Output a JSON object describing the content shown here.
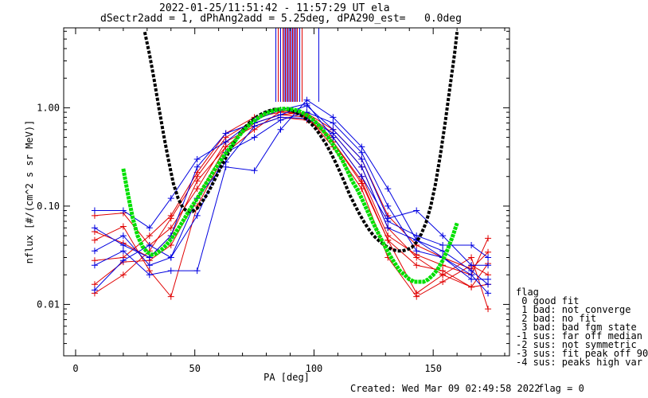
{
  "title_line1": "2022-01-25/11:51:42 - 11:57:29 UT ela",
  "title_line2": "dSectr2add = 1, dPhAng2add = 5.25deg, dPA290_est=   0.0deg",
  "footer": {
    "created": "Created: Wed Mar 09 02:49:58 2022",
    "flag": "flag = 0"
  },
  "legend": {
    "title": "flag",
    "items": [
      " 0 good fit",
      " 1 bad: not converge",
      " 2 bad: no fit",
      " 3 bad: bad fgm state",
      "-1 sus: far off median",
      "-2 sus: not symmetric",
      "-3 sus: fit peak off 90",
      "-4 sus: peaks high var"
    ]
  },
  "colors": {
    "red": "#e00000",
    "blue": "#0000e0",
    "black": "#000000",
    "green": "#00e000"
  },
  "chart_data": {
    "type": "line",
    "title": "2022-01-25/11:51:42 - 11:57:29 UT ela",
    "subtitle": "dSectr2add = 1, dPhAng2add = 5.25deg, dPA290_est=   0.0deg",
    "xlabel": "PA [deg]",
    "ylabel": "nflux [#/(cm^2 s sr MeV)]",
    "xlim": [
      -5,
      182
    ],
    "ylim": [
      0.003,
      6.5
    ],
    "ylog": true,
    "xticks": [
      0,
      50,
      100,
      150
    ],
    "xtick_labels": [
      "0",
      "50",
      "100",
      "150"
    ],
    "yticks": [
      0.01,
      0.1,
      1.0
    ],
    "ytick_labels": [
      "0.01",
      "0.10",
      "1.00"
    ],
    "grid": false,
    "series": [
      {
        "color": "red",
        "points": [
          [
            8,
            0.016
          ],
          [
            20,
            0.027
          ],
          [
            31,
            0.028
          ],
          [
            40,
            0.04
          ],
          [
            51,
            0.12
          ],
          [
            63,
            0.4
          ],
          [
            75,
            0.7
          ],
          [
            86,
            0.85
          ],
          [
            97,
            0.8
          ],
          [
            108,
            0.45
          ],
          [
            120,
            0.17
          ],
          [
            131,
            0.045
          ],
          [
            143,
            0.025
          ],
          [
            154,
            0.022
          ],
          [
            166,
            0.015
          ],
          [
            173,
            0.016
          ]
        ]
      },
      {
        "color": "red",
        "points": [
          [
            8,
            0.013
          ],
          [
            20,
            0.02
          ],
          [
            31,
            0.035
          ],
          [
            40,
            0.075
          ],
          [
            51,
            0.2
          ],
          [
            63,
            0.5
          ],
          [
            75,
            0.75
          ],
          [
            86,
            0.95
          ],
          [
            97,
            0.85
          ],
          [
            108,
            0.55
          ],
          [
            120,
            0.25
          ],
          [
            131,
            0.06
          ],
          [
            143,
            0.03
          ],
          [
            154,
            0.02
          ],
          [
            166,
            0.015
          ],
          [
            173,
            0.026
          ]
        ]
      },
      {
        "color": "red",
        "points": [
          [
            8,
            0.028
          ],
          [
            20,
            0.03
          ],
          [
            31,
            0.05
          ],
          [
            40,
            0.08
          ],
          [
            51,
            0.22
          ],
          [
            63,
            0.55
          ],
          [
            75,
            0.8
          ],
          [
            86,
            0.9
          ],
          [
            97,
            0.88
          ],
          [
            108,
            0.6
          ],
          [
            120,
            0.3
          ],
          [
            131,
            0.08
          ],
          [
            143,
            0.04
          ],
          [
            154,
            0.03
          ],
          [
            166,
            0.023
          ],
          [
            173,
            0.034
          ]
        ]
      },
      {
        "color": "red",
        "points": [
          [
            8,
            0.08
          ],
          [
            20,
            0.085
          ],
          [
            31,
            0.04
          ],
          [
            40,
            0.06
          ],
          [
            51,
            0.15
          ],
          [
            63,
            0.45
          ],
          [
            75,
            0.65
          ],
          [
            86,
            0.8
          ],
          [
            97,
            0.75
          ],
          [
            108,
            0.5
          ],
          [
            120,
            0.2
          ],
          [
            131,
            0.05
          ],
          [
            143,
            0.032
          ],
          [
            154,
            0.025
          ],
          [
            166,
            0.02
          ],
          [
            173,
            0.047
          ]
        ]
      },
      {
        "color": "red",
        "points": [
          [
            8,
            0.055
          ],
          [
            20,
            0.042
          ],
          [
            31,
            0.03
          ],
          [
            40,
            0.05
          ],
          [
            51,
            0.18
          ],
          [
            63,
            0.4
          ],
          [
            75,
            0.7
          ],
          [
            86,
            0.85
          ],
          [
            97,
            0.9
          ],
          [
            108,
            0.45
          ],
          [
            120,
            0.18
          ],
          [
            131,
            0.045
          ],
          [
            143,
            0.013
          ],
          [
            154,
            0.02
          ],
          [
            166,
            0.03
          ],
          [
            173,
            0.009
          ]
        ]
      },
      {
        "color": "red",
        "points": [
          [
            8,
            0.045
          ],
          [
            20,
            0.062
          ],
          [
            31,
            0.022
          ],
          [
            40,
            0.012
          ],
          [
            51,
            0.1
          ],
          [
            63,
            0.35
          ],
          [
            75,
            0.6
          ],
          [
            86,
            0.92
          ],
          [
            97,
            0.82
          ],
          [
            108,
            0.4
          ],
          [
            120,
            0.15
          ],
          [
            131,
            0.03
          ],
          [
            143,
            0.012
          ],
          [
            154,
            0.017
          ],
          [
            166,
            0.025
          ],
          [
            173,
            0.02
          ]
        ]
      },
      {
        "color": "blue",
        "points": [
          [
            8,
            0.09
          ],
          [
            20,
            0.09
          ],
          [
            31,
            0.06
          ],
          [
            40,
            0.12
          ],
          [
            51,
            0.3
          ],
          [
            63,
            0.45
          ],
          [
            75,
            0.75
          ],
          [
            86,
            0.95
          ],
          [
            97,
            1.1
          ],
          [
            108,
            0.5
          ],
          [
            120,
            0.2
          ],
          [
            131,
            0.07
          ],
          [
            143,
            0.05
          ],
          [
            154,
            0.04
          ],
          [
            166,
            0.04
          ],
          [
            173,
            0.03
          ]
        ]
      },
      {
        "color": "blue",
        "points": [
          [
            8,
            0.06
          ],
          [
            20,
            0.04
          ],
          [
            31,
            0.03
          ],
          [
            40,
            0.05
          ],
          [
            51,
            0.25
          ],
          [
            63,
            0.55
          ],
          [
            75,
            0.7
          ],
          [
            86,
            0.85
          ],
          [
            97,
            1.05
          ],
          [
            108,
            0.6
          ],
          [
            120,
            0.3
          ],
          [
            131,
            0.075
          ],
          [
            143,
            0.09
          ],
          [
            154,
            0.05
          ],
          [
            166,
            0.025
          ],
          [
            173,
            0.025
          ]
        ]
      },
      {
        "color": "blue",
        "points": [
          [
            8,
            0.035
          ],
          [
            20,
            0.05
          ],
          [
            31,
            0.025
          ],
          [
            40,
            0.03
          ],
          [
            51,
            0.08
          ],
          [
            63,
            0.35
          ],
          [
            75,
            0.5
          ],
          [
            86,
            0.75
          ],
          [
            97,
            0.9
          ],
          [
            108,
            0.7
          ],
          [
            120,
            0.35
          ],
          [
            131,
            0.1
          ],
          [
            143,
            0.035
          ],
          [
            154,
            0.03
          ],
          [
            166,
            0.02
          ],
          [
            173,
            0.013
          ]
        ]
      },
      {
        "color": "blue",
        "points": [
          [
            8,
            0.025
          ],
          [
            20,
            0.035
          ],
          [
            31,
            0.02
          ],
          [
            40,
            0.022
          ],
          [
            51,
            0.022
          ],
          [
            63,
            0.25
          ],
          [
            75,
            0.23
          ],
          [
            86,
            0.6
          ],
          [
            97,
            1.2
          ],
          [
            108,
            0.8
          ],
          [
            120,
            0.4
          ],
          [
            131,
            0.15
          ],
          [
            143,
            0.045
          ],
          [
            154,
            0.03
          ],
          [
            166,
            0.018
          ],
          [
            173,
            0.018
          ]
        ]
      },
      {
        "color": "blue",
        "points": [
          [
            8,
            0.014
          ],
          [
            20,
            0.028
          ],
          [
            31,
            0.04
          ],
          [
            40,
            0.03
          ],
          [
            51,
            0.12
          ],
          [
            63,
            0.28
          ],
          [
            75,
            0.65
          ],
          [
            86,
            0.8
          ],
          [
            97,
            0.78
          ],
          [
            108,
            0.55
          ],
          [
            120,
            0.25
          ],
          [
            131,
            0.06
          ],
          [
            143,
            0.045
          ],
          [
            154,
            0.035
          ],
          [
            166,
            0.022
          ],
          [
            173,
            0.016
          ]
        ]
      }
    ],
    "peak_marker_x": [
      84,
      85,
      86,
      87,
      87.5,
      88,
      88.5,
      89,
      89.5,
      90,
      90.5,
      91,
      91.5,
      92,
      92.5,
      93,
      94,
      95,
      102
    ],
    "peak_marker_colors": [
      "blue",
      "red",
      "blue",
      "red",
      "blue",
      "red",
      "blue",
      "red",
      "blue",
      "red",
      "blue",
      "red",
      "blue",
      "red",
      "blue",
      "red",
      "blue",
      "red",
      "blue"
    ],
    "fit_black": [
      [
        29,
        5.9
      ],
      [
        31,
        3.5
      ],
      [
        33,
        1.9
      ],
      [
        35,
        0.98
      ],
      [
        37,
        0.52
      ],
      [
        39,
        0.29
      ],
      [
        41,
        0.17
      ],
      [
        43,
        0.12
      ],
      [
        45,
        0.096
      ],
      [
        47,
        0.088
      ],
      [
        49,
        0.088
      ],
      [
        51,
        0.095
      ],
      [
        53,
        0.11
      ],
      [
        55,
        0.13
      ],
      [
        57,
        0.16
      ],
      [
        59,
        0.2
      ],
      [
        61,
        0.25
      ],
      [
        63,
        0.31
      ],
      [
        65,
        0.38
      ],
      [
        67,
        0.46
      ],
      [
        69,
        0.55
      ],
      [
        71,
        0.63
      ],
      [
        73,
        0.71
      ],
      [
        75,
        0.78
      ],
      [
        77,
        0.84
      ],
      [
        79,
        0.89
      ],
      [
        81,
        0.93
      ],
      [
        83,
        0.96
      ],
      [
        85,
        0.97
      ],
      [
        87,
        0.97
      ],
      [
        89,
        0.96
      ],
      [
        91,
        0.93
      ],
      [
        93,
        0.89
      ],
      [
        95,
        0.83
      ],
      [
        97,
        0.76
      ],
      [
        99,
        0.68
      ],
      [
        101,
        0.6
      ],
      [
        103,
        0.51
      ],
      [
        105,
        0.43
      ],
      [
        107,
        0.35
      ],
      [
        109,
        0.28
      ],
      [
        111,
        0.22
      ],
      [
        113,
        0.17
      ],
      [
        115,
        0.13
      ],
      [
        117,
        0.104
      ],
      [
        119,
        0.084
      ],
      [
        121,
        0.069
      ],
      [
        123,
        0.058
      ],
      [
        125,
        0.05
      ],
      [
        127,
        0.045
      ],
      [
        129,
        0.041
      ],
      [
        131,
        0.038
      ],
      [
        133,
        0.036
      ],
      [
        135,
        0.035
      ],
      [
        137,
        0.035
      ],
      [
        139,
        0.036
      ],
      [
        141,
        0.038
      ],
      [
        143,
        0.043
      ],
      [
        145,
        0.052
      ],
      [
        147,
        0.068
      ],
      [
        149,
        0.1
      ],
      [
        151,
        0.17
      ],
      [
        153,
        0.33
      ],
      [
        155,
        0.7
      ],
      [
        157,
        1.6
      ],
      [
        159,
        3.6
      ],
      [
        160,
        5.9
      ]
    ],
    "fit_green": [
      [
        20,
        0.24
      ],
      [
        22,
        0.13
      ],
      [
        24,
        0.075
      ],
      [
        26,
        0.05
      ],
      [
        28,
        0.039
      ],
      [
        30,
        0.034
      ],
      [
        32,
        0.032
      ],
      [
        34,
        0.033
      ],
      [
        36,
        0.036
      ],
      [
        38,
        0.04
      ],
      [
        40,
        0.046
      ],
      [
        42,
        0.054
      ],
      [
        44,
        0.064
      ],
      [
        46,
        0.077
      ],
      [
        48,
        0.093
      ],
      [
        50,
        0.11
      ],
      [
        52,
        0.13
      ],
      [
        54,
        0.16
      ],
      [
        56,
        0.19
      ],
      [
        58,
        0.23
      ],
      [
        60,
        0.27
      ],
      [
        62,
        0.32
      ],
      [
        64,
        0.37
      ],
      [
        66,
        0.43
      ],
      [
        68,
        0.5
      ],
      [
        70,
        0.57
      ],
      [
        72,
        0.64
      ],
      [
        74,
        0.71
      ],
      [
        76,
        0.77
      ],
      [
        78,
        0.83
      ],
      [
        80,
        0.88
      ],
      [
        82,
        0.92
      ],
      [
        84,
        0.95
      ],
      [
        86,
        0.97
      ],
      [
        88,
        0.98
      ],
      [
        90,
        0.97
      ],
      [
        92,
        0.95
      ],
      [
        94,
        0.92
      ],
      [
        96,
        0.87
      ],
      [
        98,
        0.81
      ],
      [
        100,
        0.74
      ],
      [
        102,
        0.66
      ],
      [
        104,
        0.58
      ],
      [
        106,
        0.5
      ],
      [
        108,
        0.42
      ],
      [
        110,
        0.35
      ],
      [
        112,
        0.29
      ],
      [
        114,
        0.23
      ],
      [
        116,
        0.18
      ],
      [
        118,
        0.15
      ],
      [
        120,
        0.12
      ],
      [
        122,
        0.094
      ],
      [
        124,
        0.074
      ],
      [
        126,
        0.059
      ],
      [
        128,
        0.047
      ],
      [
        130,
        0.038
      ],
      [
        132,
        0.031
      ],
      [
        134,
        0.026
      ],
      [
        136,
        0.022
      ],
      [
        138,
        0.02
      ],
      [
        140,
        0.018
      ],
      [
        142,
        0.017
      ],
      [
        144,
        0.017
      ],
      [
        146,
        0.017
      ],
      [
        148,
        0.018
      ],
      [
        150,
        0.02
      ],
      [
        152,
        0.023
      ],
      [
        154,
        0.028
      ],
      [
        156,
        0.036
      ],
      [
        158,
        0.048
      ],
      [
        160,
        0.067
      ]
    ]
  }
}
